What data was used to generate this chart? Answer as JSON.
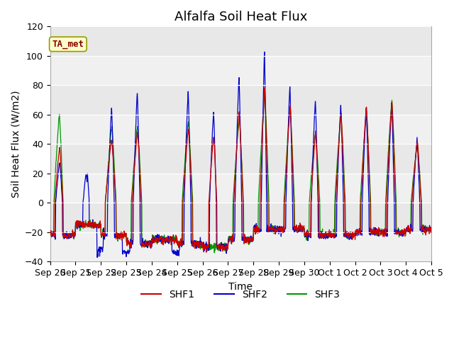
{
  "title": "Alfalfa Soil Heat Flux",
  "xlabel": "Time",
  "ylabel": "Soil Heat Flux (W/m2)",
  "ylim": [
    -40,
    120
  ],
  "yticks": [
    -40,
    -20,
    0,
    20,
    40,
    60,
    80,
    100,
    120
  ],
  "colors": {
    "SHF1": "#cc0000",
    "SHF2": "#0000cc",
    "SHF3": "#009900"
  },
  "background_color": "#e8e8e8",
  "stripe_color": "#f0f0f0",
  "annotation_text": "TA_met",
  "annotation_color": "#880000",
  "annotation_bg": "#ffffcc",
  "x_tick_labels": [
    "Sep 20",
    "Sep 21",
    "Sep 22",
    "Sep 23",
    "Sep 24",
    "Sep 25",
    "Sep 26",
    "Sep 27",
    "Sep 28",
    "Sep 29",
    "Sep 30",
    "Oct 1",
    "Oct 2",
    "Oct 3",
    "Oct 4",
    "Oct 5"
  ],
  "n_days": 15,
  "points_per_day": 96,
  "title_fontsize": 13,
  "axis_label_fontsize": 10,
  "tick_fontsize": 9
}
